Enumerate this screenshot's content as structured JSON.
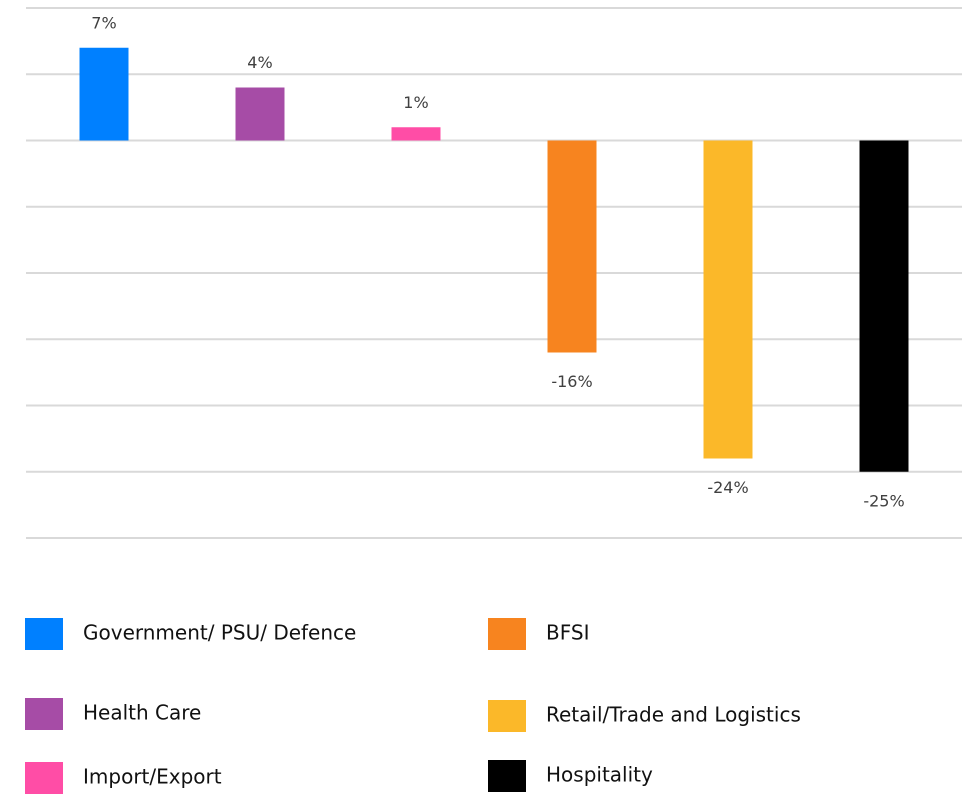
{
  "chart_data": {
    "type": "bar",
    "categories": [
      "Government/ PSU/ Defence",
      "Health Care",
      "Import/Export",
      "BFSI",
      "Retail/Trade and Logistics",
      "Hospitality"
    ],
    "values": [
      7,
      4,
      1,
      -16,
      -24,
      -25
    ],
    "value_labels": [
      "7%",
      "4%",
      "1%",
      "-16%",
      "-24%",
      "-25%"
    ],
    "colors": [
      "#0080ff",
      "#a64ca6",
      "#ff4da6",
      "#f7841f",
      "#fbb829",
      "#000000"
    ],
    "ylim": [
      -30,
      10
    ],
    "yticks": [
      10,
      5,
      0,
      -5,
      -10,
      -15,
      -20,
      -25,
      -30
    ],
    "grid": true
  }
}
